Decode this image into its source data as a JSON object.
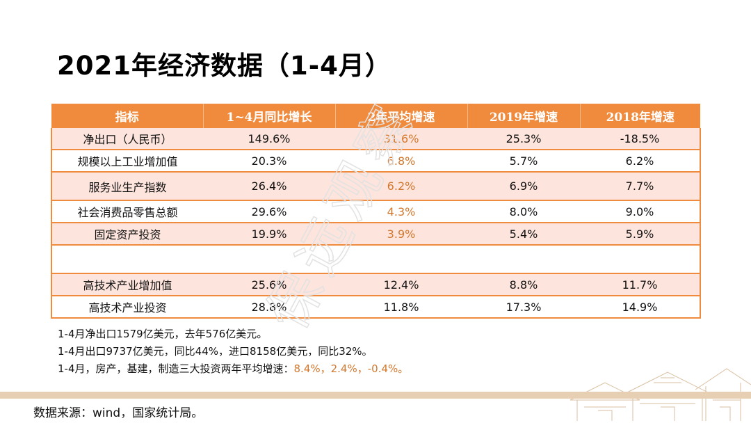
{
  "title": "2021年经济数据（1-4月）",
  "table": {
    "headers": [
      "指标",
      "1~4月同比增长",
      "2年平均增速",
      "2019年增速",
      "2018年增速"
    ],
    "rows": [
      {
        "name": "净出口（人民币）",
        "cols": [
          "149.6%",
          "31.6%",
          "25.3%",
          "-18.5%"
        ]
      },
      {
        "name": "规模以上工业增加值",
        "cols": [
          "20.3%",
          "6.8%",
          "5.7%",
          "6.2%"
        ]
      },
      {
        "name": "服务业生产指数",
        "cols": [
          "26.4%",
          "6.2%",
          "6.9%",
          "7.7%"
        ]
      },
      {
        "name": "社会消费品零售总额",
        "cols": [
          "29.6%",
          "4.3%",
          "8.0%",
          "9.0%"
        ]
      },
      {
        "name": "固定资产投资",
        "cols": [
          "19.9%",
          "3.9%",
          "5.4%",
          "5.9%"
        ]
      },
      {
        "name": "",
        "cols": [
          "",
          "",
          "",
          ""
        ]
      },
      {
        "name": "高技术产业增加值",
        "cols": [
          "25.6%",
          "12.4%",
          "8.8%",
          "11.7%"
        ]
      },
      {
        "name": "高技术产业投资",
        "cols": [
          "28.8%",
          "11.8%",
          "17.3%",
          "14.9%"
        ]
      }
    ]
  },
  "notes": {
    "line1": "1-4月净出口1579亿美元，去年576亿美元。",
    "line2": "1-4月出口9737亿美元，同比44%，进口8158亿美元，同比32%。",
    "line3_prefix": "1-4月，房产，基建，制造三大投资两年平均增速：",
    "line3_values": "8.4%，2.4%，-0.4%。"
  },
  "source": "数据来源：wind，国家统计局。",
  "watermark": "保远观察",
  "colors": {
    "accent": "#f08a3c",
    "row_tint": "#fde4dc",
    "highlight": "#d2782e",
    "band": "#e6cfb2"
  }
}
